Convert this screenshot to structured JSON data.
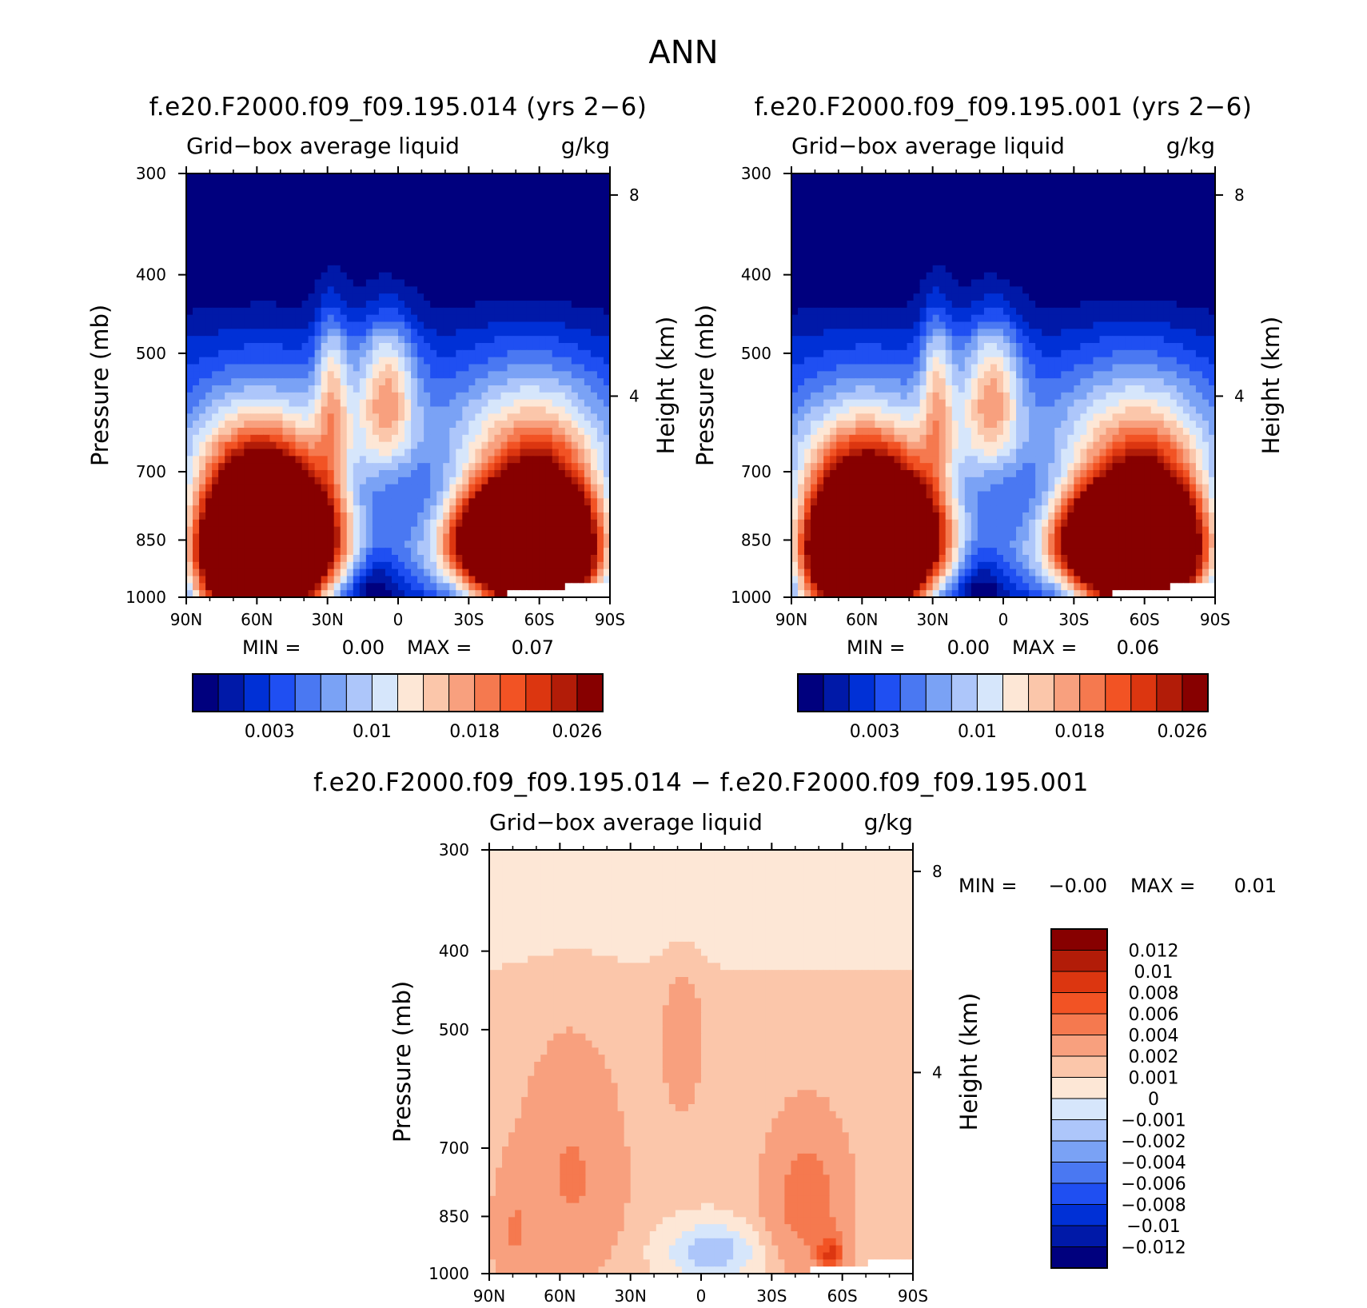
{
  "figure_title": "ANN",
  "chart_data": [
    {
      "type": "heatmap",
      "title": "f.e20.F2000.f09_f09.195.014 (yrs 2−6)",
      "variable": "Grid−box average liquid",
      "units": "g/kg",
      "ylabel": "Pressure (mb)",
      "ylabel_right": "Height (km)",
      "x_ticks": [
        "90N",
        "60N",
        "30N",
        "0",
        "30S",
        "60S",
        "90S"
      ],
      "y_ticks": [
        "300",
        "400",
        "500",
        "700",
        "850",
        "1000"
      ],
      "y_right_ticks": [
        "8",
        "4"
      ],
      "min_label": "MIN =",
      "min_value": "0.00",
      "max_label": "MAX =",
      "max_value": "0.07",
      "colorbar": {
        "levels": 16,
        "labels": [
          "0.003",
          "0.01",
          "0.018",
          "0.026"
        ],
        "colors": [
          "#00007e",
          "#0019a8",
          "#0030d6",
          "#1f4ff2",
          "#4a78f2",
          "#7aa2f5",
          "#adc6fa",
          "#d6e6fb",
          "#fde7d6",
          "#fbc6aa",
          "#f8a07e",
          "#f5794f",
          "#f25324",
          "#dc3610",
          "#b21c08",
          "#870000"
        ]
      },
      "field_peaks": [
        {
          "lat": 60,
          "p": 850,
          "value": 0.07
        },
        {
          "lat": -60,
          "p": 850,
          "value": 0.06
        }
      ]
    },
    {
      "type": "heatmap",
      "title": "f.e20.F2000.f09_f09.195.001 (yrs 2−6)",
      "variable": "Grid−box average liquid",
      "units": "g/kg",
      "ylabel": "Pressure (mb)",
      "ylabel_right": "Height (km)",
      "x_ticks": [
        "90N",
        "60N",
        "30N",
        "0",
        "30S",
        "60S",
        "90S"
      ],
      "y_ticks": [
        "300",
        "400",
        "500",
        "700",
        "850",
        "1000"
      ],
      "y_right_ticks": [
        "8",
        "4"
      ],
      "min_label": "MIN =",
      "min_value": "0.00",
      "max_label": "MAX =",
      "max_value": "0.06",
      "colorbar": {
        "levels": 16,
        "labels": [
          "0.003",
          "0.01",
          "0.018",
          "0.026"
        ],
        "colors": [
          "#00007e",
          "#0019a8",
          "#0030d6",
          "#1f4ff2",
          "#4a78f2",
          "#7aa2f5",
          "#adc6fa",
          "#d6e6fb",
          "#fde7d6",
          "#fbc6aa",
          "#f8a07e",
          "#f5794f",
          "#f25324",
          "#dc3610",
          "#b21c08",
          "#870000"
        ]
      },
      "field_peaks": [
        {
          "lat": 60,
          "p": 850,
          "value": 0.06
        },
        {
          "lat": -60,
          "p": 850,
          "value": 0.06
        }
      ]
    },
    {
      "type": "heatmap",
      "title": "f.e20.F2000.f09_f09.195.014 − f.e20.F2000.f09_f09.195.001",
      "variable": "Grid−box average liquid",
      "units": "g/kg",
      "ylabel": "Pressure (mb)",
      "ylabel_right": "Height (km)",
      "x_ticks": [
        "90N",
        "60N",
        "30N",
        "0",
        "30S",
        "60S",
        "90S"
      ],
      "y_ticks": [
        "300",
        "400",
        "500",
        "700",
        "850",
        "1000"
      ],
      "y_right_ticks": [
        "8",
        "4"
      ],
      "min_label": "MIN =",
      "min_value": "−0.00",
      "max_label": "MAX =",
      "max_value": "0.01",
      "colorbar": {
        "labels": [
          "0.012",
          "0.01",
          "0.008",
          "0.006",
          "0.004",
          "0.002",
          "0.001",
          "0",
          "−0.001",
          "−0.002",
          "−0.004",
          "−0.006",
          "−0.008",
          "−0.01",
          "−0.012"
        ],
        "colors": [
          "#870000",
          "#b21c08",
          "#dc3610",
          "#f25324",
          "#f5794f",
          "#f8a07e",
          "#fbc6aa",
          "#fde7d6",
          "#d6e6fb",
          "#adc6fa",
          "#7aa2f5",
          "#4a78f2",
          "#1f4ff2",
          "#0030d6",
          "#0019a8",
          "#00007e"
        ]
      }
    }
  ]
}
